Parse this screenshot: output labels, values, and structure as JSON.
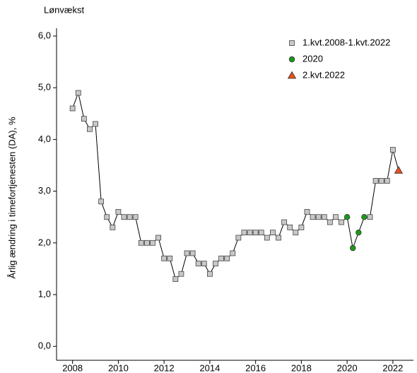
{
  "chart_data": {
    "type": "line",
    "title": "Lønvækst",
    "y_label": "Årlig ændring i timefortjenesten (DA), %",
    "xlim": [
      2007.3,
      2022.9
    ],
    "ylim": [
      -0.27,
      6.15
    ],
    "xticks": [
      2008,
      2010,
      2012,
      2014,
      2016,
      2018,
      2020,
      2022
    ],
    "yticks": [
      {
        "value": 0,
        "label": "0,0"
      },
      {
        "value": 1,
        "label": "1,0"
      },
      {
        "value": 2,
        "label": "2,0"
      },
      {
        "value": 3,
        "label": "3,0"
      },
      {
        "value": 4,
        "label": "4,0"
      },
      {
        "value": 5,
        "label": "5,0"
      },
      {
        "value": 6,
        "label": "6,0"
      }
    ],
    "line_color": "#000000",
    "legend": "top-right",
    "series": [
      {
        "name": "1.kvt.2008-1.kvt.2022",
        "marker": "square",
        "color": "#c8c8c8",
        "x": [
          2008,
          2008.25,
          2008.5,
          2008.75,
          2009,
          2009.25,
          2009.5,
          2009.75,
          2010,
          2010.25,
          2010.5,
          2010.75,
          2011,
          2011.25,
          2011.5,
          2011.75,
          2012,
          2012.25,
          2012.5,
          2012.75,
          2013,
          2013.25,
          2013.5,
          2013.75,
          2014,
          2014.25,
          2014.5,
          2014.75,
          2015,
          2015.25,
          2015.5,
          2015.75,
          2016,
          2016.25,
          2016.5,
          2016.75,
          2017,
          2017.25,
          2017.5,
          2017.75,
          2018,
          2018.25,
          2018.5,
          2018.75,
          2019,
          2019.25,
          2019.5,
          2019.75,
          2021,
          2021.25,
          2021.5,
          2021.75,
          2022
        ],
        "values": [
          4.6,
          4.9,
          4.4,
          4.2,
          4.3,
          2.8,
          2.5,
          2.3,
          2.6,
          2.5,
          2.5,
          2.5,
          2.0,
          2.0,
          2.0,
          2.1,
          1.7,
          1.7,
          1.3,
          1.4,
          1.8,
          1.8,
          1.6,
          1.6,
          1.4,
          1.6,
          1.7,
          1.7,
          1.8,
          2.1,
          2.2,
          2.2,
          2.2,
          2.2,
          2.1,
          2.2,
          2.1,
          2.4,
          2.3,
          2.2,
          2.3,
          2.6,
          2.5,
          2.5,
          2.5,
          2.4,
          2.5,
          2.4,
          2.5,
          3.2,
          3.2,
          3.2,
          3.8
        ]
      },
      {
        "name": "2020",
        "marker": "circle",
        "color": "#1a9a1a",
        "x": [
          2020,
          2020.25,
          2020.5,
          2020.75
        ],
        "values": [
          2.5,
          1.9,
          2.2,
          2.5
        ]
      },
      {
        "name": "2.kvt.2022",
        "marker": "triangle",
        "color": "#e8501e",
        "x": [
          2022.25
        ],
        "values": [
          3.4
        ]
      }
    ]
  }
}
